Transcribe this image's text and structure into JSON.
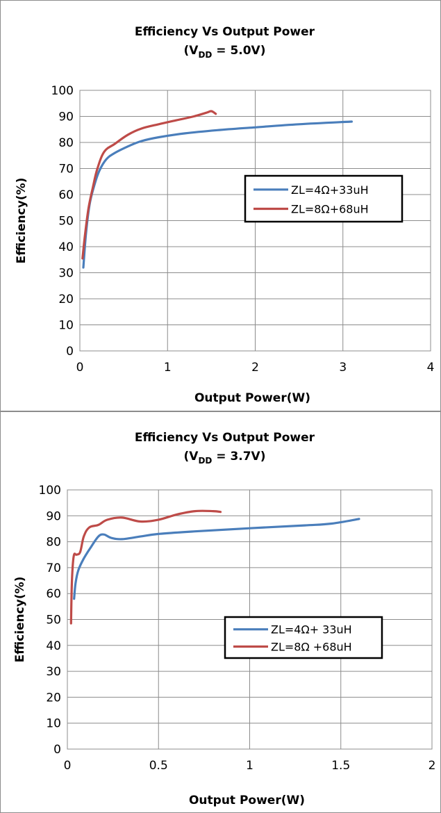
{
  "chart_data": [
    {
      "type": "line",
      "title": "Efficiency Vs Output Power",
      "subtitle_parts": [
        "(V",
        "DD",
        " = 5.0V)"
      ],
      "xlabel": "Output Power(W)",
      "ylabel": "Efficiency(%)",
      "xlim": [
        0,
        4
      ],
      "ylim": [
        0,
        100
      ],
      "x_ticks": [
        "0",
        "1",
        "2",
        "3",
        "4"
      ],
      "y_ticks": [
        "0",
        "10",
        "20",
        "30",
        "40",
        "50",
        "60",
        "70",
        "80",
        "90",
        "100"
      ],
      "grid": true,
      "legend_position": "center-right",
      "series": [
        {
          "name": "ZL=4Ω+33uH",
          "color": "#4a7ebb",
          "points": [
            [
              0.04,
              32
            ],
            [
              0.07,
              45
            ],
            [
              0.11,
              56
            ],
            [
              0.16,
              63
            ],
            [
              0.22,
              69
            ],
            [
              0.3,
              73.5
            ],
            [
              0.4,
              76
            ],
            [
              0.55,
              78.5
            ],
            [
              0.7,
              80.5
            ],
            [
              0.9,
              82
            ],
            [
              1.2,
              83.5
            ],
            [
              1.6,
              84.8
            ],
            [
              2.0,
              85.8
            ],
            [
              2.5,
              87
            ],
            [
              3.1,
              88
            ]
          ]
        },
        {
          "name": "ZL=8Ω+68uH",
          "color": "#be4b48",
          "points": [
            [
              0.03,
              35.5
            ],
            [
              0.06,
              45
            ],
            [
              0.1,
              55
            ],
            [
              0.15,
              63
            ],
            [
              0.2,
              70
            ],
            [
              0.28,
              76.5
            ],
            [
              0.4,
              79.5
            ],
            [
              0.55,
              83
            ],
            [
              0.7,
              85.3
            ],
            [
              0.9,
              87
            ],
            [
              1.1,
              88.5
            ],
            [
              1.3,
              90
            ],
            [
              1.45,
              91.5
            ],
            [
              1.5,
              92
            ],
            [
              1.55,
              91
            ]
          ]
        }
      ]
    },
    {
      "type": "line",
      "title": "Efficiency Vs Output Power",
      "subtitle_parts": [
        "(V",
        "DD",
        " = 3.7V)"
      ],
      "xlabel": "Output Power(W)",
      "ylabel": "Efficiency(%)",
      "xlim": [
        0,
        2
      ],
      "ylim": [
        0,
        100
      ],
      "x_ticks": [
        "0",
        "0.5",
        "1",
        "1.5",
        "2"
      ],
      "y_ticks": [
        "0",
        "10",
        "20",
        "30",
        "40",
        "50",
        "60",
        "70",
        "80",
        "90",
        "100"
      ],
      "grid": true,
      "legend_position": "center-right",
      "series": [
        {
          "name": "ZL=4Ω+ 33uH",
          "color": "#4a7ebb",
          "points": [
            [
              0.037,
              58
            ],
            [
              0.045,
              64
            ],
            [
              0.06,
              69
            ],
            [
              0.09,
              73.5
            ],
            [
              0.13,
              78
            ],
            [
              0.17,
              82
            ],
            [
              0.2,
              82.8
            ],
            [
              0.24,
              81.5
            ],
            [
              0.3,
              81
            ],
            [
              0.4,
              82
            ],
            [
              0.5,
              83
            ],
            [
              0.7,
              84
            ],
            [
              1.0,
              85.2
            ],
            [
              1.3,
              86.3
            ],
            [
              1.45,
              87
            ],
            [
              1.6,
              88.8
            ]
          ]
        },
        {
          "name": "ZL=8Ω +68uH",
          "color": "#be4b48",
          "points": [
            [
              0.02,
              48.5
            ],
            [
              0.025,
              65
            ],
            [
              0.035,
              74.5
            ],
            [
              0.05,
              75
            ],
            [
              0.07,
              76
            ],
            [
              0.09,
              82
            ],
            [
              0.12,
              85.5
            ],
            [
              0.17,
              86.5
            ],
            [
              0.22,
              88.5
            ],
            [
              0.3,
              89.3
            ],
            [
              0.4,
              87.8
            ],
            [
              0.5,
              88.5
            ],
            [
              0.6,
              90.5
            ],
            [
              0.7,
              91.8
            ],
            [
              0.8,
              91.8
            ],
            [
              0.84,
              91.5
            ]
          ]
        }
      ]
    }
  ]
}
